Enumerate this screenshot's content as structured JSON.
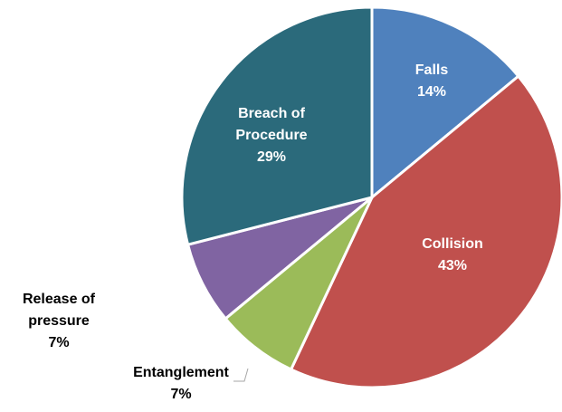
{
  "chart_data": {
    "type": "pie",
    "categories": [
      "Falls",
      "Collision",
      "Entanglement",
      "Release of pressure",
      "Breach of Procedure"
    ],
    "values": [
      14,
      43,
      7,
      7,
      29
    ],
    "value_labels": [
      "14%",
      "43%",
      "7%",
      "7%",
      "29%"
    ],
    "colors": [
      "#4f81bd",
      "#c0504d",
      "#9bbb59",
      "#8064a2",
      "#2b6a7b"
    ]
  }
}
